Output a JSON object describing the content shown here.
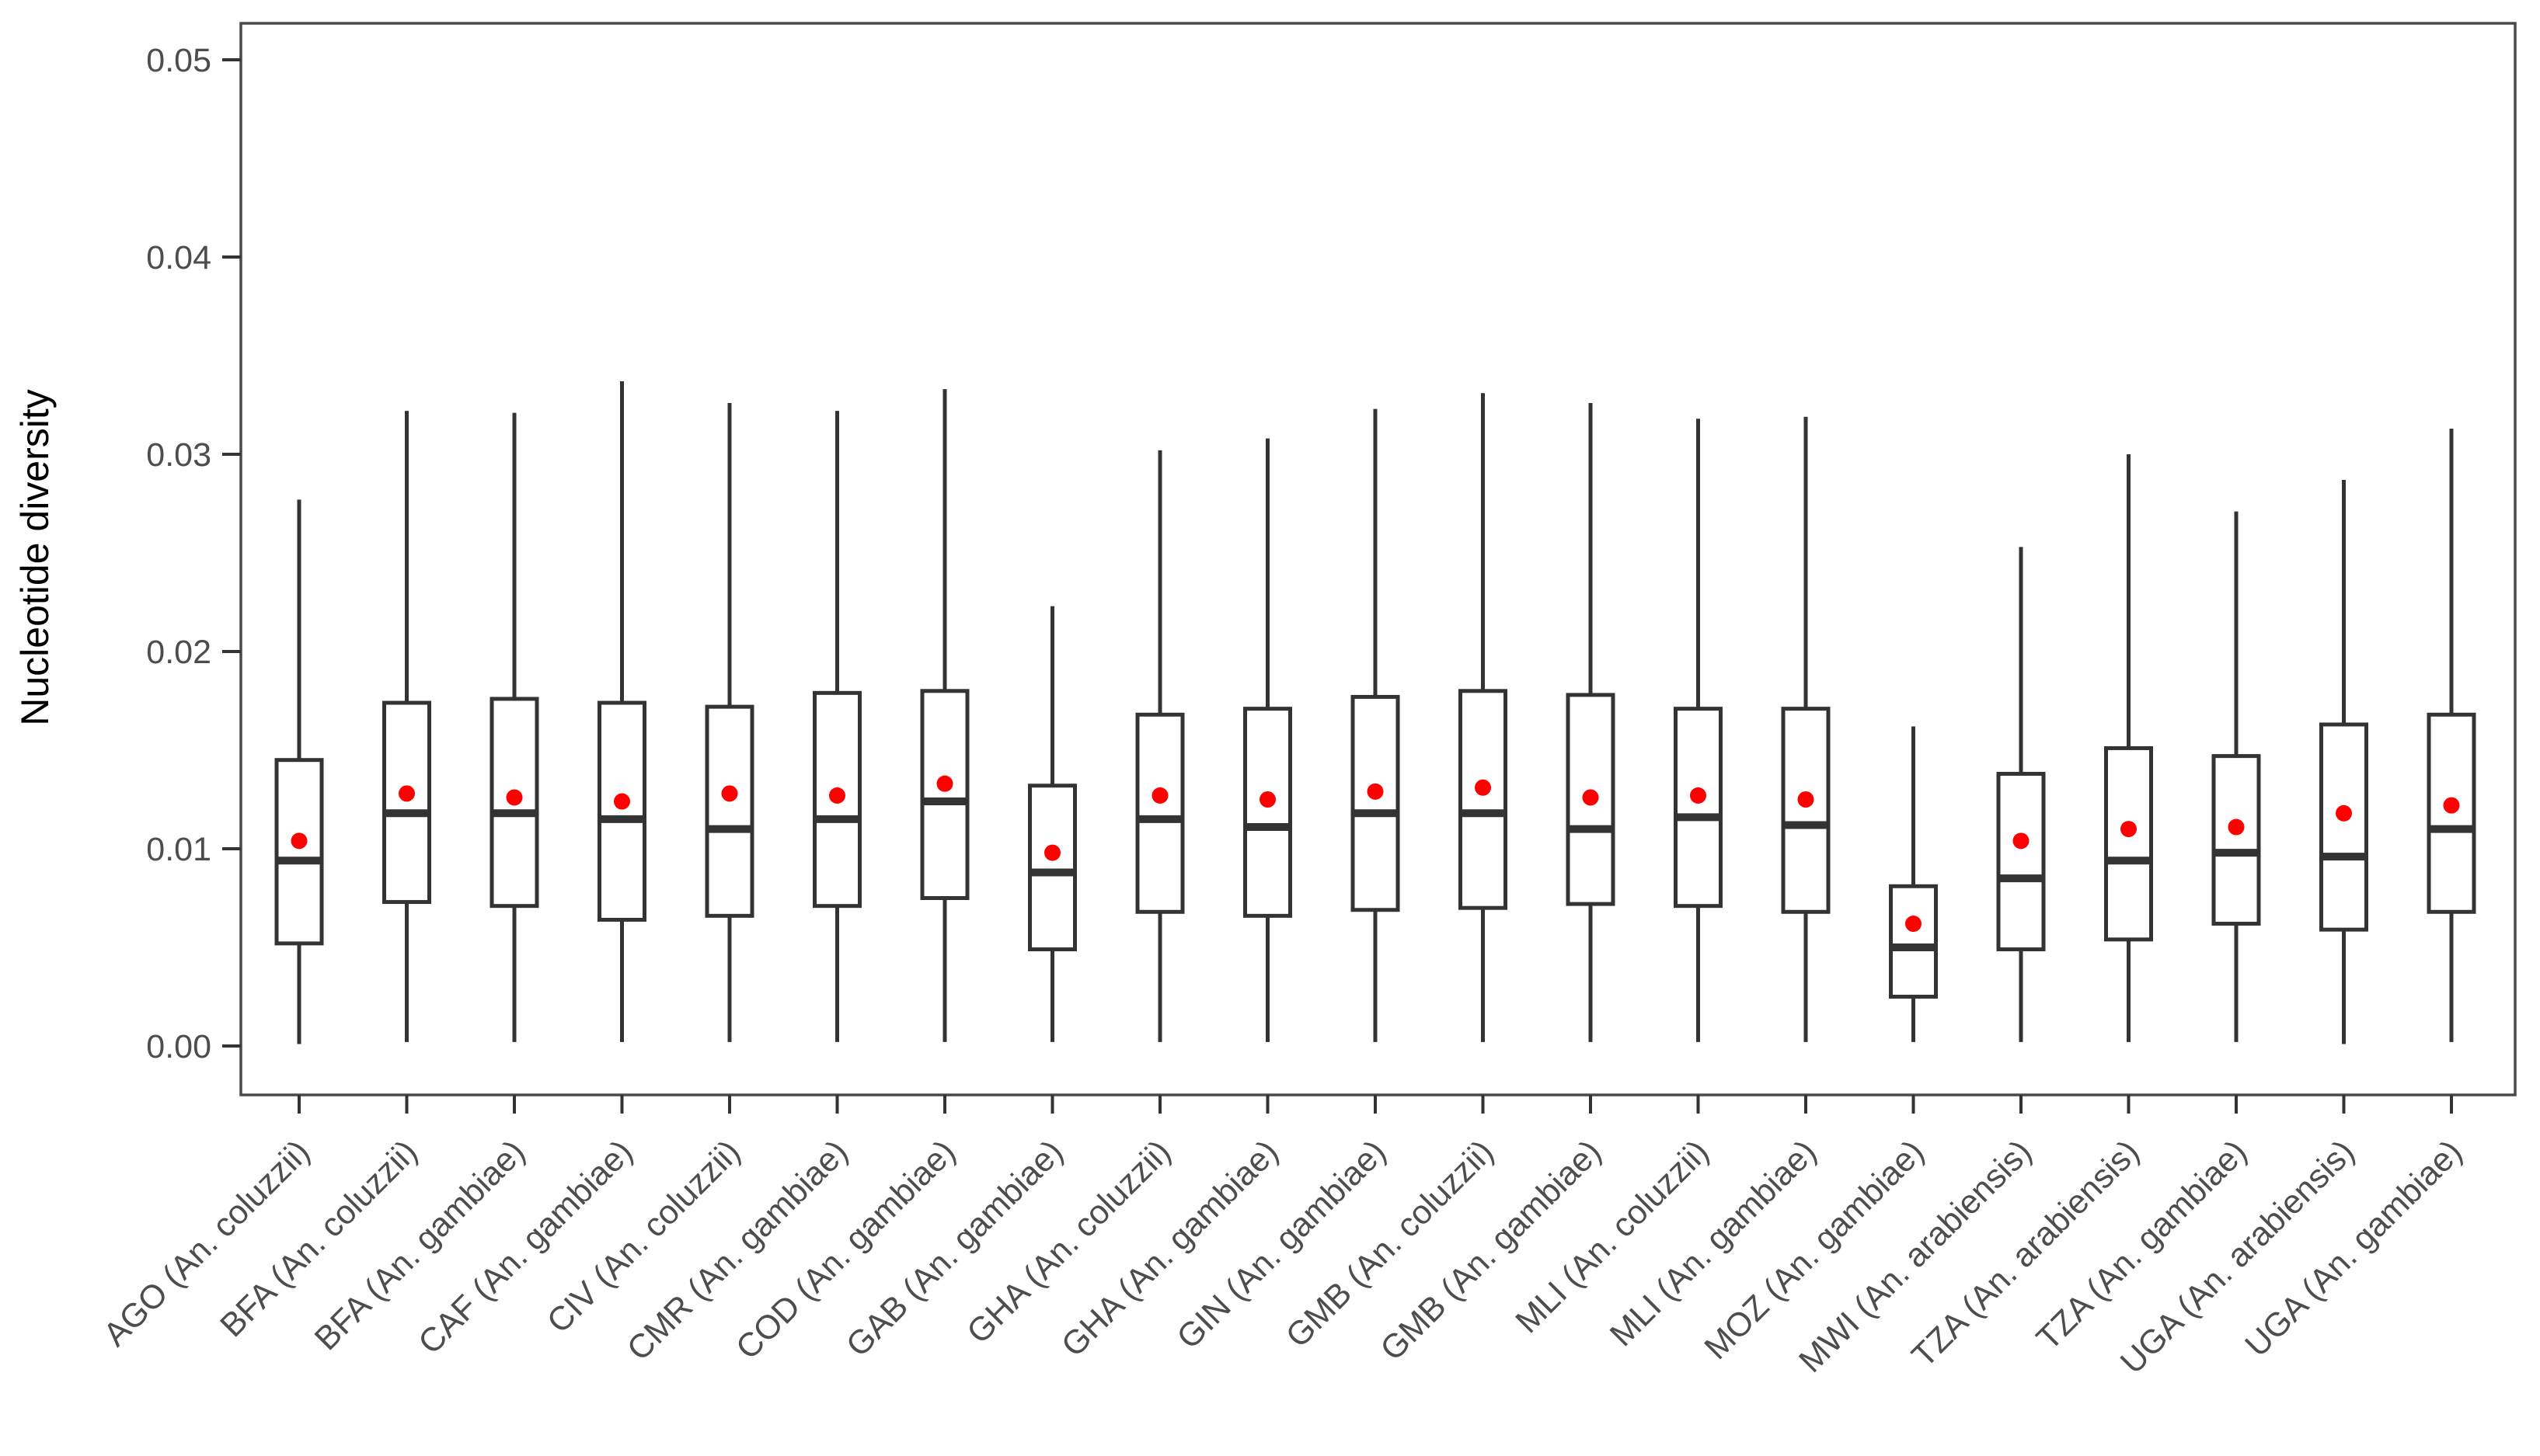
{
  "figure": {
    "background": "#ffffff"
  },
  "chart_data": {
    "type": "boxplot",
    "title": "",
    "xlabel": "",
    "ylabel": "Nucleotide diversity",
    "ylim": [
      0,
      0.052
    ],
    "y_ticks": [
      0.0,
      0.01,
      0.02,
      0.03,
      0.04,
      0.05
    ],
    "y_tick_labels": [
      "0.00",
      "0.01",
      "0.02",
      "0.03",
      "0.04",
      "0.05"
    ],
    "grid": false,
    "legend_position": "none",
    "colors": {
      "box_stroke": "#333333",
      "box_fill": "#ffffff",
      "mean_dot": "#ff0000",
      "panel_border": "#4a4a4a",
      "tick_mark": "#333333",
      "tick_text": "#4d4d4d",
      "axis_title_text": "#000000"
    },
    "categories": [
      "AGO (An. coluzzii)",
      "BFA (An. coluzzii)",
      "BFA (An. gambiae)",
      "CAF (An. gambiae)",
      "CIV (An. coluzzii)",
      "CMR (An. gambiae)",
      "COD (An. gambiae)",
      "GAB (An. gambiae)",
      "GHA (An. coluzzii)",
      "GHA (An. gambiae)",
      "GIN (An. gambiae)",
      "GMB (An. coluzzii)",
      "GMB (An. gambiae)",
      "MLI (An. coluzzii)",
      "MLI (An. gambiae)",
      "MOZ (An. gambiae)",
      "MWI (An. arabiensis)",
      "TZA (An. arabiensis)",
      "TZA (An. gambiae)",
      "UGA (An. arabiensis)",
      "UGA (An. gambiae)"
    ],
    "boxes": [
      {
        "label": "AGO (An. coluzzii)",
        "whisker_low": 0.0001,
        "q1": 0.0052,
        "median": 0.0094,
        "mean": 0.0104,
        "q3": 0.0145,
        "whisker_high": 0.0277
      },
      {
        "label": "BFA (An. coluzzii)",
        "whisker_low": 0.0002,
        "q1": 0.0073,
        "median": 0.0118,
        "mean": 0.0128,
        "q3": 0.0174,
        "whisker_high": 0.0322
      },
      {
        "label": "BFA (An. gambiae)",
        "whisker_low": 0.0002,
        "q1": 0.0071,
        "median": 0.0118,
        "mean": 0.0126,
        "q3": 0.0176,
        "whisker_high": 0.0321
      },
      {
        "label": "CAF (An. gambiae)",
        "whisker_low": 0.0002,
        "q1": 0.0064,
        "median": 0.0115,
        "mean": 0.0124,
        "q3": 0.0174,
        "whisker_high": 0.0337
      },
      {
        "label": "CIV (An. coluzzii)",
        "whisker_low": 0.0002,
        "q1": 0.0066,
        "median": 0.011,
        "mean": 0.0128,
        "q3": 0.0172,
        "whisker_high": 0.0326
      },
      {
        "label": "CMR (An. gambiae)",
        "whisker_low": 0.0002,
        "q1": 0.0071,
        "median": 0.0115,
        "mean": 0.0127,
        "q3": 0.0179,
        "whisker_high": 0.0322
      },
      {
        "label": "COD (An. gambiae)",
        "whisker_low": 0.0002,
        "q1": 0.0075,
        "median": 0.0124,
        "mean": 0.0133,
        "q3": 0.018,
        "whisker_high": 0.0333
      },
      {
        "label": "GAB (An. gambiae)",
        "whisker_low": 0.0002,
        "q1": 0.0049,
        "median": 0.0088,
        "mean": 0.0098,
        "q3": 0.0132,
        "whisker_high": 0.0223
      },
      {
        "label": "GHA (An. coluzzii)",
        "whisker_low": 0.0002,
        "q1": 0.0068,
        "median": 0.0115,
        "mean": 0.0127,
        "q3": 0.0168,
        "whisker_high": 0.0302
      },
      {
        "label": "GHA (An. gambiae)",
        "whisker_low": 0.0002,
        "q1": 0.0066,
        "median": 0.0111,
        "mean": 0.0125,
        "q3": 0.0171,
        "whisker_high": 0.0308
      },
      {
        "label": "GIN (An. gambiae)",
        "whisker_low": 0.0002,
        "q1": 0.0069,
        "median": 0.0118,
        "mean": 0.0129,
        "q3": 0.0177,
        "whisker_high": 0.0323
      },
      {
        "label": "GMB (An. coluzzii)",
        "whisker_low": 0.0002,
        "q1": 0.007,
        "median": 0.0118,
        "mean": 0.0131,
        "q3": 0.018,
        "whisker_high": 0.0331
      },
      {
        "label": "GMB (An. gambiae)",
        "whisker_low": 0.0002,
        "q1": 0.0072,
        "median": 0.011,
        "mean": 0.0126,
        "q3": 0.0178,
        "whisker_high": 0.0326
      },
      {
        "label": "MLI (An. coluzzii)",
        "whisker_low": 0.0002,
        "q1": 0.0071,
        "median": 0.0116,
        "mean": 0.0127,
        "q3": 0.0171,
        "whisker_high": 0.0318
      },
      {
        "label": "MLI (An. gambiae)",
        "whisker_low": 0.0002,
        "q1": 0.0068,
        "median": 0.0112,
        "mean": 0.0125,
        "q3": 0.0171,
        "whisker_high": 0.0319
      },
      {
        "label": "MOZ (An. gambiae)",
        "whisker_low": 0.0002,
        "q1": 0.0025,
        "median": 0.005,
        "mean": 0.0062,
        "q3": 0.0081,
        "whisker_high": 0.0162
      },
      {
        "label": "MWI (An. arabiensis)",
        "whisker_low": 0.0002,
        "q1": 0.0049,
        "median": 0.0085,
        "mean": 0.0104,
        "q3": 0.0138,
        "whisker_high": 0.0253
      },
      {
        "label": "TZA (An. arabiensis)",
        "whisker_low": 0.0002,
        "q1": 0.0054,
        "median": 0.0094,
        "mean": 0.011,
        "q3": 0.0151,
        "whisker_high": 0.03
      },
      {
        "label": "TZA (An. gambiae)",
        "whisker_low": 0.0002,
        "q1": 0.0062,
        "median": 0.0098,
        "mean": 0.0111,
        "q3": 0.0147,
        "whisker_high": 0.0271
      },
      {
        "label": "UGA (An. arabiensis)",
        "whisker_low": 0.0001,
        "q1": 0.0059,
        "median": 0.0096,
        "mean": 0.0118,
        "q3": 0.0163,
        "whisker_high": 0.0287
      },
      {
        "label": "UGA (An. gambiae)",
        "whisker_low": 0.0002,
        "q1": 0.0068,
        "median": 0.011,
        "mean": 0.0122,
        "q3": 0.0168,
        "whisker_high": 0.0313
      }
    ]
  }
}
